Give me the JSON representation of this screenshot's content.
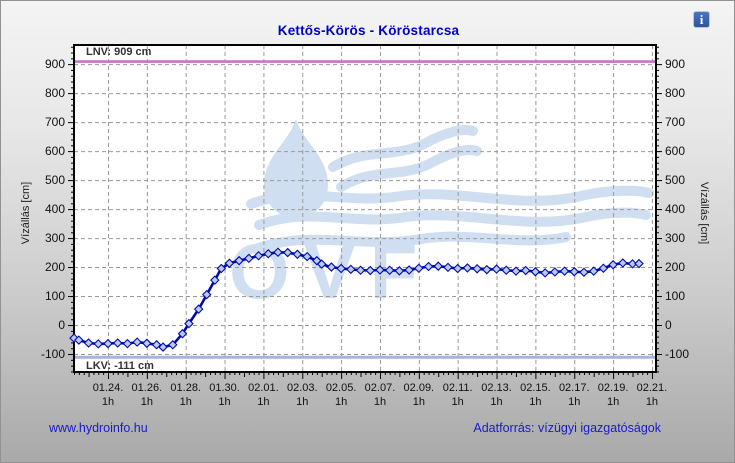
{
  "window": {
    "title": "Kettős-Körös - Köröstarcsa"
  },
  "header": {
    "info_icon_glyph": "i"
  },
  "footer": {
    "site_link": "www.hydroinfo.hu",
    "source_label": "Adatforrás: vízügyi igazgatóságok"
  },
  "colors": {
    "title": "#0000cc",
    "series_line": "#0008ad",
    "marker_fill": "#b9cbe8",
    "lnv_line": "#cc70cc",
    "lkv_line": "#a9b2dd",
    "grid": "#999999",
    "axis_border": "#000000",
    "watermark": "#cfdff1",
    "link": "#1a1acc",
    "tick_text": "#111111"
  },
  "chart_data": {
    "type": "line",
    "title": "Kettős-Körös - Köröstarcsa",
    "ylabel_left": "Vízállás [cm]",
    "ylabel_right": "Vízállás [cm]",
    "ylim": [
      -162,
      966
    ],
    "yticks": [
      -100,
      0,
      100,
      200,
      300,
      400,
      500,
      600,
      700,
      800,
      900
    ],
    "y_minor_step": 20,
    "x_range": [
      "01.22 06",
      "02.21 05"
    ],
    "x_tick_labels": [
      "01.24.",
      "01.26.",
      "01.28.",
      "01.30.",
      "02.01.",
      "02.03.",
      "02.05.",
      "02.07.",
      "02.09.",
      "02.11.",
      "02.13.",
      "02.15.",
      "02.17.",
      "02.19.",
      "02.21."
    ],
    "x_tick_sublabel": "1h",
    "grid": "dashed",
    "legend": "none",
    "watermark_text": "OVF",
    "reference_lines": [
      {
        "name": "LNV",
        "label": "LNV: 909 cm",
        "value": 909
      },
      {
        "name": "LKV",
        "label": "LKV: -111 cm",
        "value": -111
      }
    ],
    "series": [
      {
        "name": "vízállás",
        "point_format": [
          "MM.DD HH",
          "cm"
        ],
        "points": [
          [
            "01.22 06",
            -45
          ],
          [
            "01.22 12",
            -52
          ],
          [
            "01.23 00",
            -62
          ],
          [
            "01.23 12",
            -65
          ],
          [
            "01.24 00",
            -64
          ],
          [
            "01.24 12",
            -62
          ],
          [
            "01.25 00",
            -64
          ],
          [
            "01.25 12",
            -59
          ],
          [
            "01.26 00",
            -63
          ],
          [
            "01.26 12",
            -68
          ],
          [
            "01.26 20",
            -76
          ],
          [
            "01.27 08",
            -68
          ],
          [
            "01.27 20",
            -30
          ],
          [
            "01.28 04",
            5
          ],
          [
            "01.28 16",
            55
          ],
          [
            "01.29 02",
            105
          ],
          [
            "01.29 12",
            155
          ],
          [
            "01.29 20",
            195
          ],
          [
            "01.30 06",
            213
          ],
          [
            "01.30 18",
            222
          ],
          [
            "01.31 06",
            230
          ],
          [
            "01.31 18",
            239
          ],
          [
            "02.01 06",
            246
          ],
          [
            "02.01 18",
            251
          ],
          [
            "02.02 06",
            250
          ],
          [
            "02.02 18",
            244
          ],
          [
            "02.03 06",
            236
          ],
          [
            "02.03 18",
            222
          ],
          [
            "02.04 00",
            210
          ],
          [
            "02.04 12",
            200
          ],
          [
            "02.05 00",
            195
          ],
          [
            "02.05 12",
            192
          ],
          [
            "02.06 00",
            189
          ],
          [
            "02.06 12",
            188
          ],
          [
            "02.07 00",
            190
          ],
          [
            "02.07 12",
            189
          ],
          [
            "02.08 00",
            187
          ],
          [
            "02.08 12",
            190
          ],
          [
            "02.09 00",
            196
          ],
          [
            "02.09 12",
            202
          ],
          [
            "02.10 00",
            203
          ],
          [
            "02.10 12",
            199
          ],
          [
            "02.11 00",
            195
          ],
          [
            "02.11 12",
            197
          ],
          [
            "02.12 00",
            194
          ],
          [
            "02.12 12",
            191
          ],
          [
            "02.13 00",
            193
          ],
          [
            "02.13 12",
            189
          ],
          [
            "02.14 00",
            186
          ],
          [
            "02.14 12",
            188
          ],
          [
            "02.15 00",
            184
          ],
          [
            "02.15 12",
            180
          ],
          [
            "02.16 00",
            183
          ],
          [
            "02.16 12",
            186
          ],
          [
            "02.17 00",
            184
          ],
          [
            "02.17 12",
            182
          ],
          [
            "02.18 00",
            186
          ],
          [
            "02.18 12",
            196
          ],
          [
            "02.19 00",
            208
          ],
          [
            "02.19 12",
            214
          ],
          [
            "02.20 00",
            211
          ],
          [
            "02.20 08",
            212
          ]
        ]
      }
    ]
  }
}
